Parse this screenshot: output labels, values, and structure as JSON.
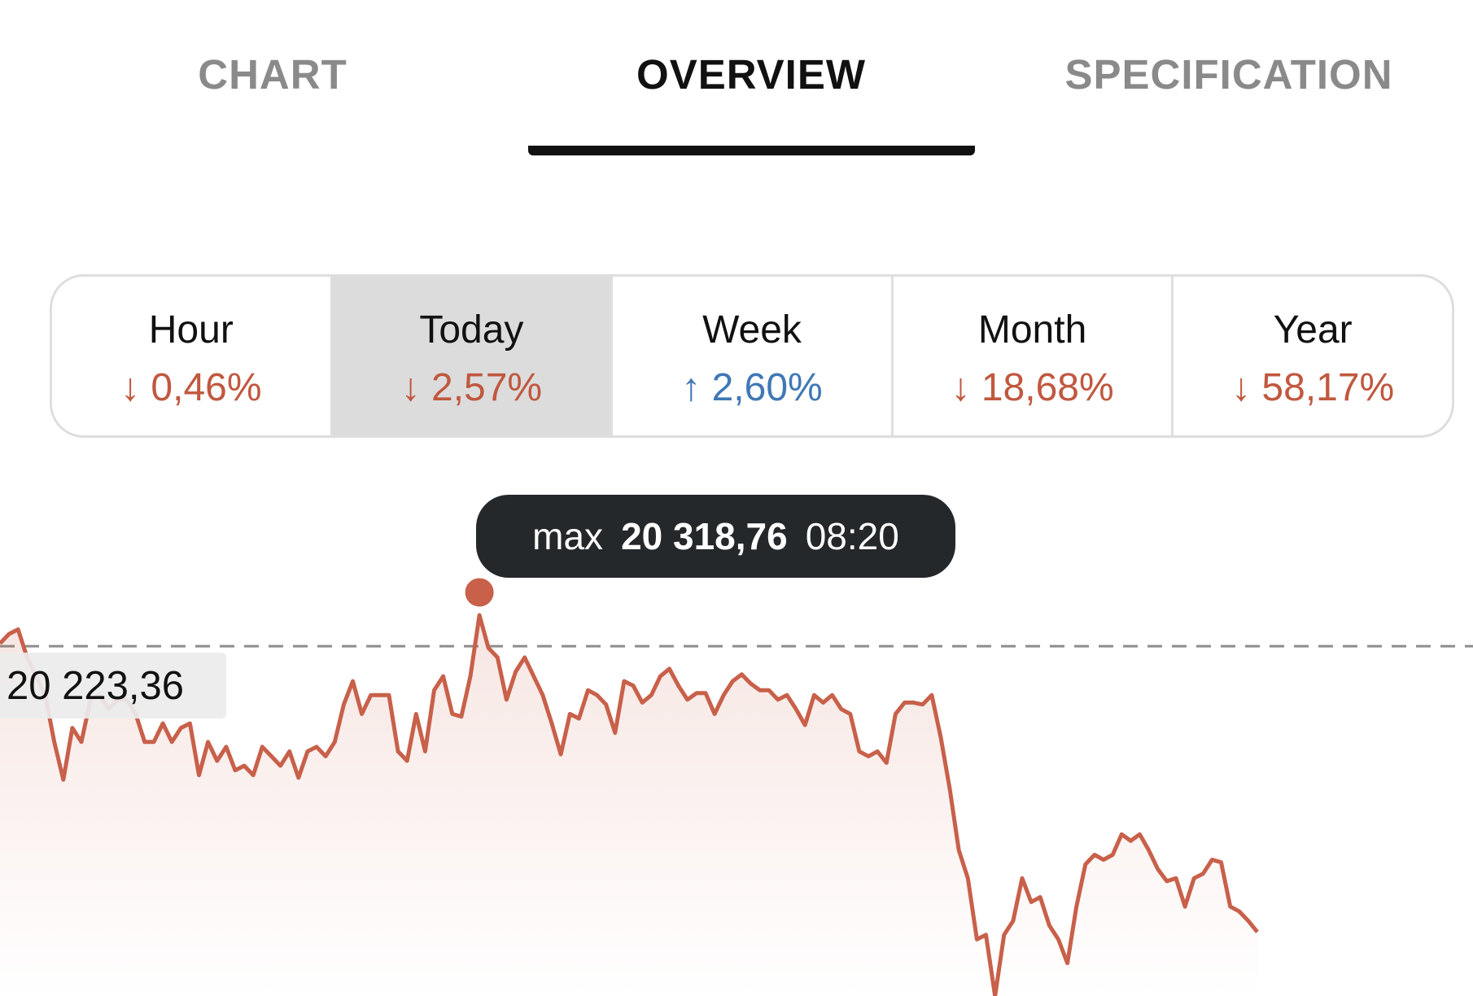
{
  "tabs": {
    "items": [
      "CHART",
      "OVERVIEW",
      "SPECIFICATION"
    ],
    "selected": 1
  },
  "periods": {
    "selected": 1,
    "up_color": "#3f78b5",
    "down_color": "#c0583f",
    "items": [
      {
        "name": "Hour",
        "change": -0.46,
        "change_label": "↓ 0,46%"
      },
      {
        "name": "Today",
        "change": -2.57,
        "change_label": "↓ 2,57%"
      },
      {
        "name": "Week",
        "change": 2.6,
        "change_label": "↑ 2,60%"
      },
      {
        "name": "Month",
        "change": -18.68,
        "change_label": "↓ 18,68%"
      },
      {
        "name": "Year",
        "change": -58.17,
        "change_label": "↓ 58,17%"
      }
    ]
  },
  "chart_data": {
    "type": "line",
    "series": [
      {
        "color": "#c8604a",
        "values": [
          20232,
          20261,
          20275,
          20189,
          20131,
          20073,
          19929,
          19813,
          19972,
          19929,
          20059,
          20073,
          20030,
          20059,
          20059,
          20015,
          19929,
          19929,
          19986,
          19929,
          19972,
          19986,
          19827,
          19929,
          19871,
          19914,
          19842,
          19856,
          19827,
          19914,
          19885,
          19856,
          19900,
          19819,
          19900,
          19914,
          19885,
          19929,
          20044,
          20116,
          20015,
          20073,
          20073,
          20073,
          19900,
          19871,
          20015,
          19900,
          20088,
          20131,
          20015,
          20007,
          20131,
          20318.76,
          20218,
          20189,
          20059,
          20145,
          20189,
          20131,
          20073,
          19986,
          19891,
          20015,
          20001,
          20088,
          20073,
          20044,
          19957,
          20116,
          20102,
          20050,
          20073,
          20131,
          20154,
          20102,
          20059,
          20079,
          20079,
          20015,
          20073,
          20116,
          20137,
          20108,
          20088,
          20088,
          20059,
          20073,
          20030,
          19981,
          20073,
          20050,
          20073,
          20030,
          20015,
          19900,
          19885,
          19900,
          19865,
          20015,
          20050,
          20050,
          20044,
          20073,
          19943,
          19784,
          19596,
          19510,
          19322,
          19336,
          19148,
          19336,
          19379,
          19510,
          19437,
          19452,
          19365,
          19322,
          19249,
          19423,
          19553,
          19582,
          19567,
          19582,
          19645,
          19625,
          19645,
          19596,
          19538,
          19501,
          19510,
          19423,
          19510,
          19524,
          19567,
          19559,
          19423,
          19408,
          19379,
          19345
        ]
      }
    ],
    "reference": {
      "value": 20223.36,
      "label": "20 223,36"
    },
    "max": {
      "label": "max",
      "value": 20318.76,
      "value_label": "20 318,76",
      "time": "08:20"
    }
  }
}
